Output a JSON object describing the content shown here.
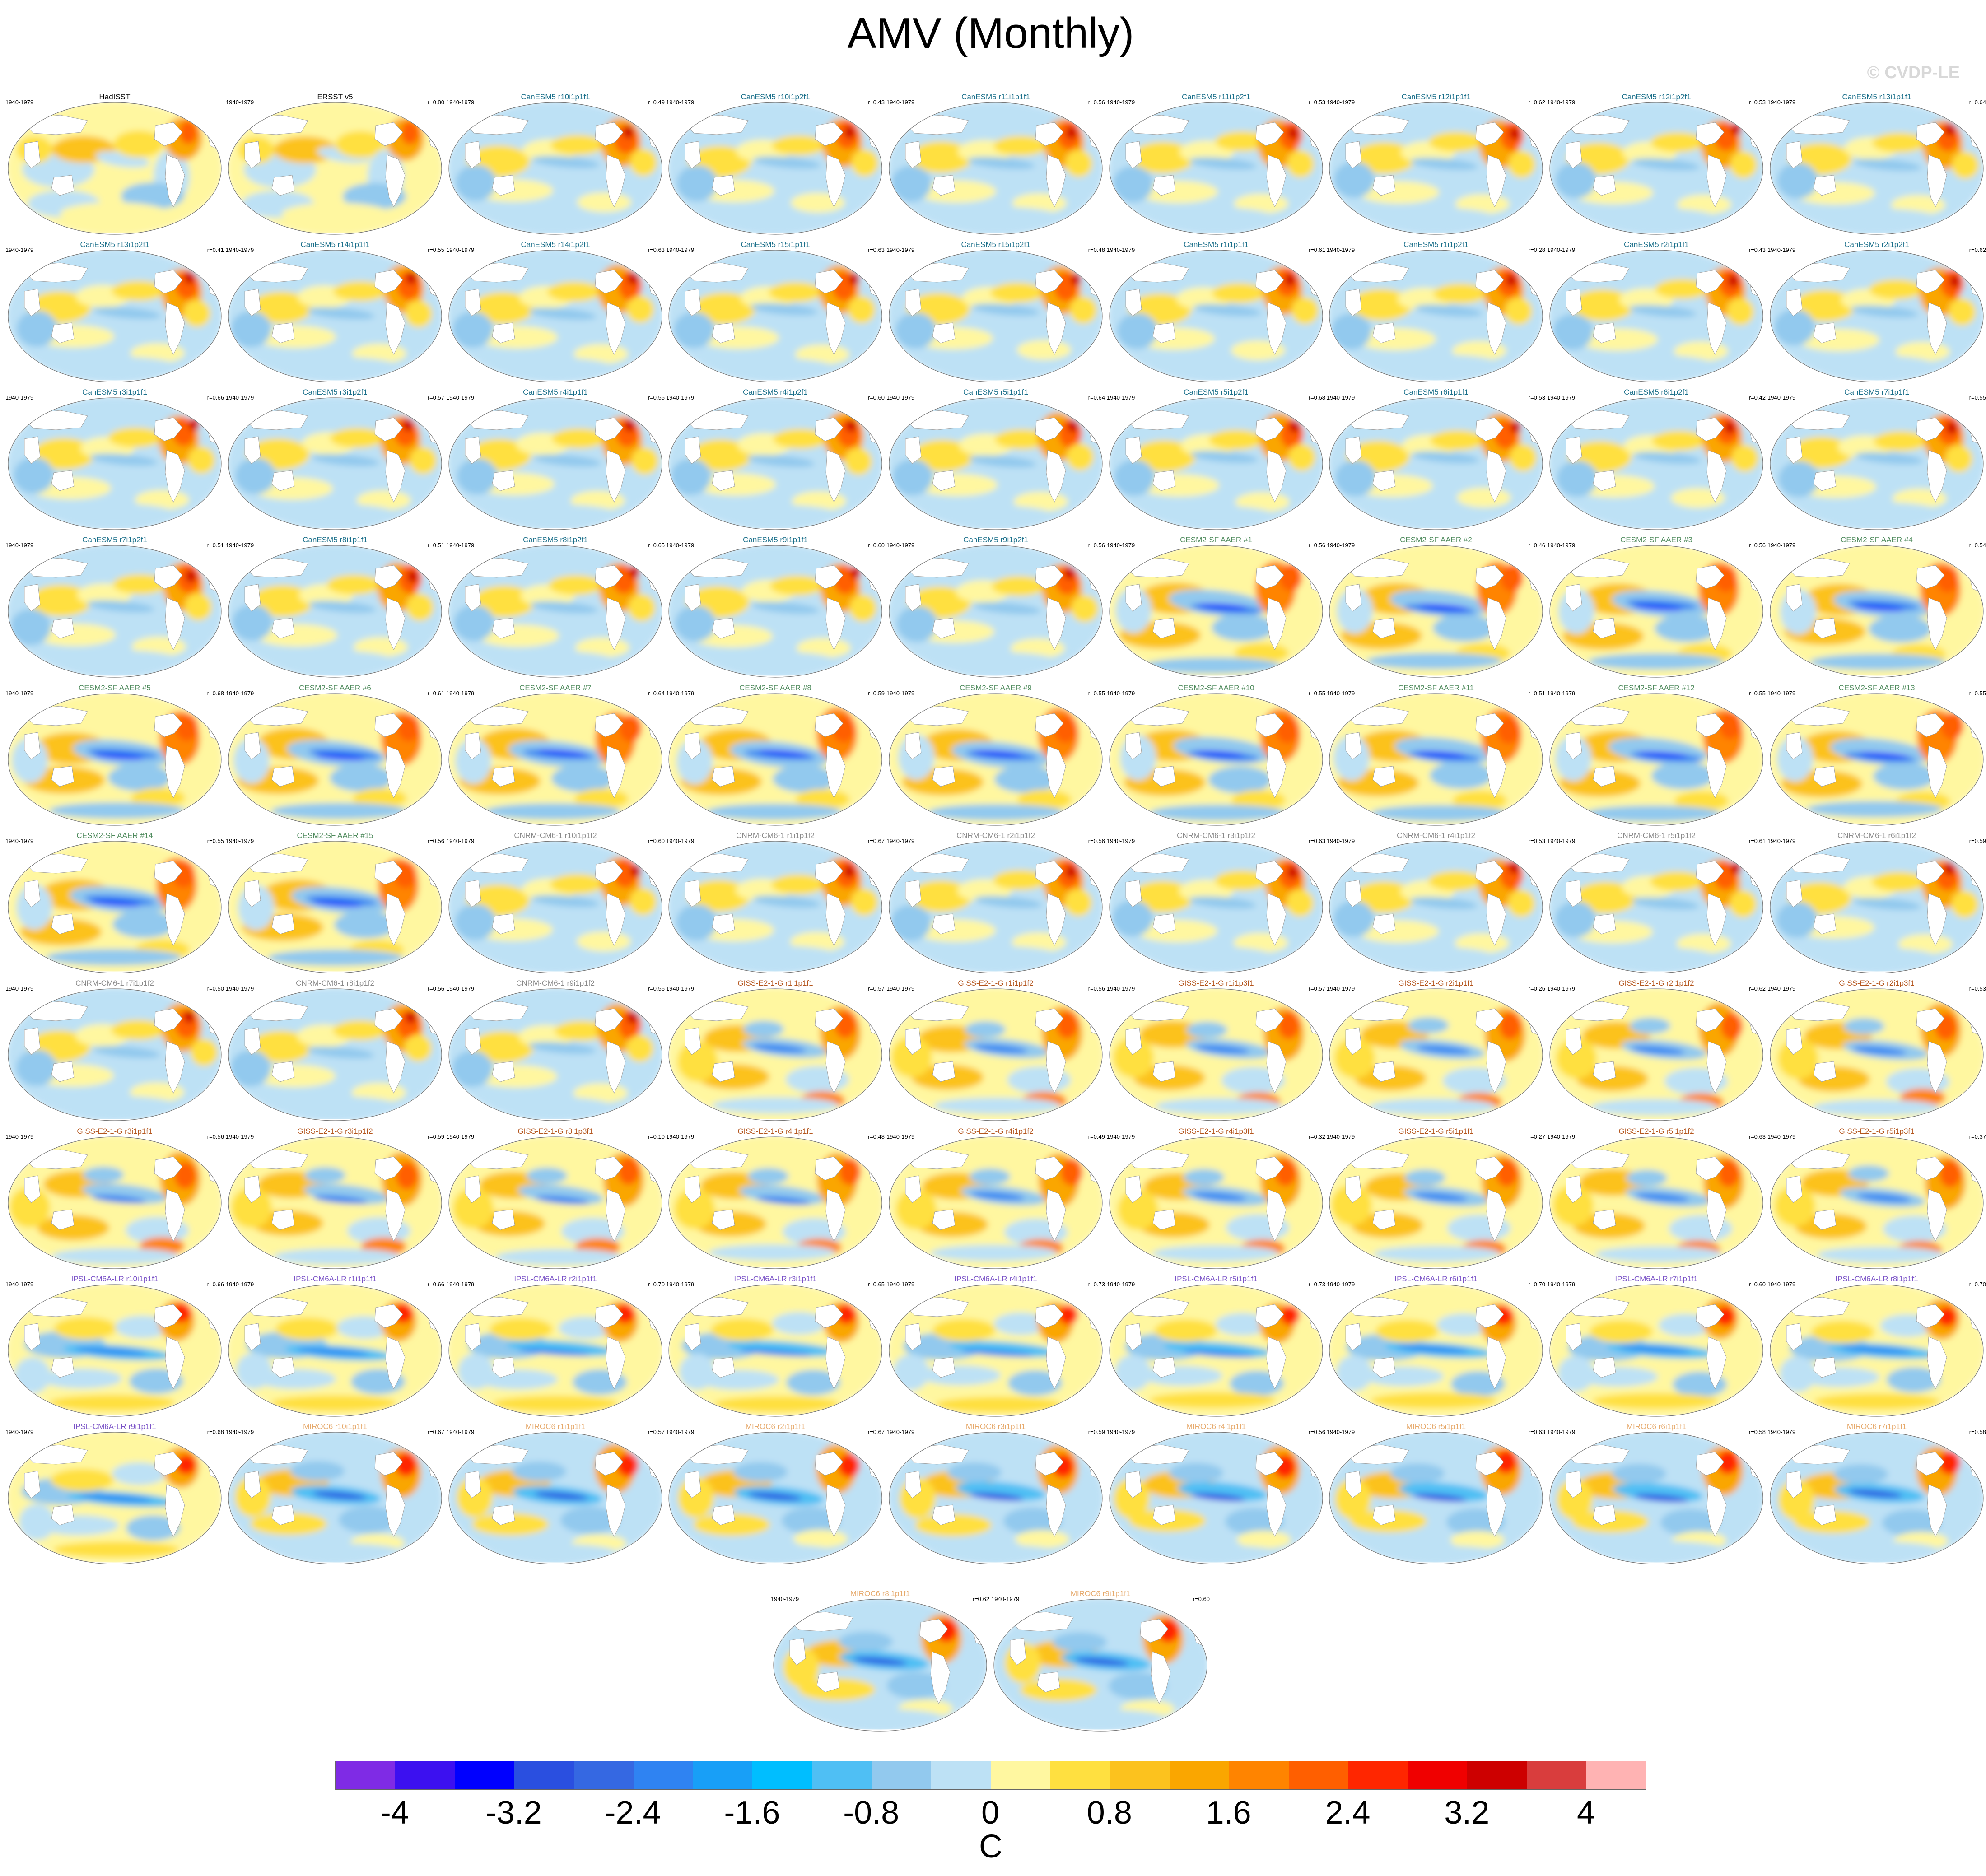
{
  "figure": {
    "title": "AMV (Monthly)",
    "watermark": "© CVDP-LE",
    "period": "1940-1979",
    "units": "C"
  },
  "colorbar": {
    "colors": [
      "#7f2be5",
      "#3c10f0",
      "#0000ff",
      "#2a4fe0",
      "#3568e2",
      "#2f83f2",
      "#189ff7",
      "#00beff",
      "#4fbff4",
      "#92c9ee",
      "#bde1f5",
      "#fff7a0",
      "#ffe040",
      "#fcc21e",
      "#faa600",
      "#ff8400",
      "#ff5f00",
      "#ff2600",
      "#f00000",
      "#cd0000",
      "#d93d3d",
      "#ffb3b3"
    ],
    "ticks": [
      "-4",
      "-3.2",
      "-2.4",
      "-1.6",
      "-0.8",
      "0",
      "0.8",
      "1.6",
      "2.4",
      "3.2",
      "4"
    ]
  },
  "group_colors": {
    "obs": "#000000",
    "canesm5": "#1a6f8a",
    "cesm2": "#4e8a5c",
    "cnrm": "#8a8a8a",
    "giss": "#b4561e",
    "ipsl": "#7a52c7",
    "miroc": "#e6a96b"
  },
  "panels": [
    {
      "name": "HadISST",
      "r": "",
      "group": "obs",
      "pattern": "obs"
    },
    {
      "name": "ERSST v5",
      "r": "r=0.80",
      "group": "obs",
      "pattern": "obs"
    },
    {
      "name": "CanESM5 r10i1p1f1",
      "r": "r=0.49",
      "group": "canesm5",
      "pattern": "can"
    },
    {
      "name": "CanESM5 r10i1p2f1",
      "r": "r=0.43",
      "group": "canesm5",
      "pattern": "can"
    },
    {
      "name": "CanESM5 r11i1p1f1",
      "r": "r=0.56",
      "group": "canesm5",
      "pattern": "can"
    },
    {
      "name": "CanESM5 r11i1p2f1",
      "r": "r=0.53",
      "group": "canesm5",
      "pattern": "can"
    },
    {
      "name": "CanESM5 r12i1p1f1",
      "r": "r=0.62",
      "group": "canesm5",
      "pattern": "can"
    },
    {
      "name": "CanESM5 r12i1p2f1",
      "r": "r=0.53",
      "group": "canesm5",
      "pattern": "can"
    },
    {
      "name": "CanESM5 r13i1p1f1",
      "r": "r=0.64",
      "group": "canesm5",
      "pattern": "can"
    },
    {
      "name": "CanESM5 r13i1p2f1",
      "r": "r=0.41",
      "group": "canesm5",
      "pattern": "can"
    },
    {
      "name": "CanESM5 r14i1p1f1",
      "r": "r=0.55",
      "group": "canesm5",
      "pattern": "can"
    },
    {
      "name": "CanESM5 r14i1p2f1",
      "r": "r=0.63",
      "group": "canesm5",
      "pattern": "can"
    },
    {
      "name": "CanESM5 r15i1p1f1",
      "r": "r=0.63",
      "group": "canesm5",
      "pattern": "can"
    },
    {
      "name": "CanESM5 r15i1p2f1",
      "r": "r=0.48",
      "group": "canesm5",
      "pattern": "can"
    },
    {
      "name": "CanESM5 r1i1p1f1",
      "r": "r=0.61",
      "group": "canesm5",
      "pattern": "can"
    },
    {
      "name": "CanESM5 r1i1p2f1",
      "r": "r=0.28",
      "group": "canesm5",
      "pattern": "can"
    },
    {
      "name": "CanESM5 r2i1p1f1",
      "r": "r=0.43",
      "group": "canesm5",
      "pattern": "can"
    },
    {
      "name": "CanESM5 r2i1p2f1",
      "r": "r=0.62",
      "group": "canesm5",
      "pattern": "can"
    },
    {
      "name": "CanESM5 r3i1p1f1",
      "r": "r=0.66",
      "group": "canesm5",
      "pattern": "can"
    },
    {
      "name": "CanESM5 r3i1p2f1",
      "r": "r=0.57",
      "group": "canesm5",
      "pattern": "can"
    },
    {
      "name": "CanESM5 r4i1p1f1",
      "r": "r=0.55",
      "group": "canesm5",
      "pattern": "can"
    },
    {
      "name": "CanESM5 r4i1p2f1",
      "r": "r=0.60",
      "group": "canesm5",
      "pattern": "can"
    },
    {
      "name": "CanESM5 r5i1p1f1",
      "r": "r=0.64",
      "group": "canesm5",
      "pattern": "can"
    },
    {
      "name": "CanESM5 r5i1p2f1",
      "r": "r=0.68",
      "group": "canesm5",
      "pattern": "can"
    },
    {
      "name": "CanESM5 r6i1p1f1",
      "r": "r=0.53",
      "group": "canesm5",
      "pattern": "can"
    },
    {
      "name": "CanESM5 r6i1p2f1",
      "r": "r=0.42",
      "group": "canesm5",
      "pattern": "can"
    },
    {
      "name": "CanESM5 r7i1p1f1",
      "r": "r=0.55",
      "group": "canesm5",
      "pattern": "can"
    },
    {
      "name": "CanESM5 r7i1p2f1",
      "r": "r=0.51",
      "group": "canesm5",
      "pattern": "can"
    },
    {
      "name": "CanESM5 r8i1p1f1",
      "r": "r=0.51",
      "group": "canesm5",
      "pattern": "can"
    },
    {
      "name": "CanESM5 r8i1p2f1",
      "r": "r=0.65",
      "group": "canesm5",
      "pattern": "can"
    },
    {
      "name": "CanESM5 r9i1p1f1",
      "r": "r=0.60",
      "group": "canesm5",
      "pattern": "can"
    },
    {
      "name": "CanESM5 r9i1p2f1",
      "r": "r=0.56",
      "group": "canesm5",
      "pattern": "can"
    },
    {
      "name": "CESM2-SF AAER #1",
      "r": "r=0.56",
      "group": "cesm2",
      "pattern": "cesm"
    },
    {
      "name": "CESM2-SF AAER #2",
      "r": "r=0.46",
      "group": "cesm2",
      "pattern": "cesm"
    },
    {
      "name": "CESM2-SF AAER #3",
      "r": "r=0.56",
      "group": "cesm2",
      "pattern": "cesm"
    },
    {
      "name": "CESM2-SF AAER #4",
      "r": "r=0.54",
      "group": "cesm2",
      "pattern": "cesm"
    },
    {
      "name": "CESM2-SF AAER #5",
      "r": "r=0.68",
      "group": "cesm2",
      "pattern": "cesm"
    },
    {
      "name": "CESM2-SF AAER #6",
      "r": "r=0.61",
      "group": "cesm2",
      "pattern": "cesm"
    },
    {
      "name": "CESM2-SF AAER #7",
      "r": "r=0.64",
      "group": "cesm2",
      "pattern": "cesm"
    },
    {
      "name": "CESM2-SF AAER #8",
      "r": "r=0.59",
      "group": "cesm2",
      "pattern": "cesm"
    },
    {
      "name": "CESM2-SF AAER #9",
      "r": "r=0.55",
      "group": "cesm2",
      "pattern": "cesm"
    },
    {
      "name": "CESM2-SF AAER #10",
      "r": "r=0.55",
      "group": "cesm2",
      "pattern": "cesm"
    },
    {
      "name": "CESM2-SF AAER #11",
      "r": "r=0.51",
      "group": "cesm2",
      "pattern": "cesm"
    },
    {
      "name": "CESM2-SF AAER #12",
      "r": "r=0.55",
      "group": "cesm2",
      "pattern": "cesm"
    },
    {
      "name": "CESM2-SF AAER #13",
      "r": "r=0.55",
      "group": "cesm2",
      "pattern": "cesm"
    },
    {
      "name": "CESM2-SF AAER #14",
      "r": "r=0.55",
      "group": "cesm2",
      "pattern": "cesm"
    },
    {
      "name": "CESM2-SF AAER #15",
      "r": "r=0.56",
      "group": "cesm2",
      "pattern": "cesm"
    },
    {
      "name": "CNRM-CM6-1 r10i1p1f2",
      "r": "r=0.60",
      "group": "cnrm",
      "pattern": "can"
    },
    {
      "name": "CNRM-CM6-1 r1i1p1f2",
      "r": "r=0.67",
      "group": "cnrm",
      "pattern": "can"
    },
    {
      "name": "CNRM-CM6-1 r2i1p1f2",
      "r": "r=0.56",
      "group": "cnrm",
      "pattern": "can"
    },
    {
      "name": "CNRM-CM6-1 r3i1p1f2",
      "r": "r=0.63",
      "group": "cnrm",
      "pattern": "can"
    },
    {
      "name": "CNRM-CM6-1 r4i1p1f2",
      "r": "r=0.53",
      "group": "cnrm",
      "pattern": "can"
    },
    {
      "name": "CNRM-CM6-1 r5i1p1f2",
      "r": "r=0.61",
      "group": "cnrm",
      "pattern": "can"
    },
    {
      "name": "CNRM-CM6-1 r6i1p1f2",
      "r": "r=0.59",
      "group": "cnrm",
      "pattern": "can"
    },
    {
      "name": "CNRM-CM6-1 r7i1p1f2",
      "r": "r=0.50",
      "group": "cnrm",
      "pattern": "can"
    },
    {
      "name": "CNRM-CM6-1 r8i1p1f2",
      "r": "r=0.56",
      "group": "cnrm",
      "pattern": "can"
    },
    {
      "name": "CNRM-CM6-1 r9i1p1f2",
      "r": "r=0.56",
      "group": "cnrm",
      "pattern": "can"
    },
    {
      "name": "GISS-E2-1-G r1i1p1f1",
      "r": "r=0.57",
      "group": "giss",
      "pattern": "giss"
    },
    {
      "name": "GISS-E2-1-G r1i1p1f2",
      "r": "r=0.56",
      "group": "giss",
      "pattern": "giss"
    },
    {
      "name": "GISS-E2-1-G r1i1p3f1",
      "r": "r=0.57",
      "group": "giss",
      "pattern": "giss"
    },
    {
      "name": "GISS-E2-1-G r2i1p1f1",
      "r": "r=0.26",
      "group": "giss",
      "pattern": "giss"
    },
    {
      "name": "GISS-E2-1-G r2i1p1f2",
      "r": "r=0.62",
      "group": "giss",
      "pattern": "giss"
    },
    {
      "name": "GISS-E2-1-G r2i1p3f1",
      "r": "r=0.53",
      "group": "giss",
      "pattern": "giss"
    },
    {
      "name": "GISS-E2-1-G r3i1p1f1",
      "r": "r=0.56",
      "group": "giss",
      "pattern": "giss"
    },
    {
      "name": "GISS-E2-1-G r3i1p1f2",
      "r": "r=0.59",
      "group": "giss",
      "pattern": "giss"
    },
    {
      "name": "GISS-E2-1-G r3i1p3f1",
      "r": "r=0.10",
      "group": "giss",
      "pattern": "giss"
    },
    {
      "name": "GISS-E2-1-G r4i1p1f1",
      "r": "r=0.48",
      "group": "giss",
      "pattern": "giss"
    },
    {
      "name": "GISS-E2-1-G r4i1p1f2",
      "r": "r=0.49",
      "group": "giss",
      "pattern": "giss"
    },
    {
      "name": "GISS-E2-1-G r4i1p3f1",
      "r": "r=0.32",
      "group": "giss",
      "pattern": "giss"
    },
    {
      "name": "GISS-E2-1-G r5i1p1f1",
      "r": "r=0.27",
      "group": "giss",
      "pattern": "giss"
    },
    {
      "name": "GISS-E2-1-G r5i1p1f2",
      "r": "r=0.63",
      "group": "giss",
      "pattern": "giss"
    },
    {
      "name": "GISS-E2-1-G r5i1p3f1",
      "r": "r=0.37",
      "group": "giss",
      "pattern": "giss"
    },
    {
      "name": "IPSL-CM6A-LR r10i1p1f1",
      "r": "r=0.66",
      "group": "ipsl",
      "pattern": "ipsl"
    },
    {
      "name": "IPSL-CM6A-LR r1i1p1f1",
      "r": "r=0.66",
      "group": "ipsl",
      "pattern": "ipsl"
    },
    {
      "name": "IPSL-CM6A-LR r2i1p1f1",
      "r": "r=0.70",
      "group": "ipsl",
      "pattern": "ipsl"
    },
    {
      "name": "IPSL-CM6A-LR r3i1p1f1",
      "r": "r=0.65",
      "group": "ipsl",
      "pattern": "ipsl"
    },
    {
      "name": "IPSL-CM6A-LR r4i1p1f1",
      "r": "r=0.73",
      "group": "ipsl",
      "pattern": "ipsl"
    },
    {
      "name": "IPSL-CM6A-LR r5i1p1f1",
      "r": "r=0.73",
      "group": "ipsl",
      "pattern": "ipsl"
    },
    {
      "name": "IPSL-CM6A-LR r6i1p1f1",
      "r": "r=0.70",
      "group": "ipsl",
      "pattern": "ipsl"
    },
    {
      "name": "IPSL-CM6A-LR r7i1p1f1",
      "r": "r=0.60",
      "group": "ipsl",
      "pattern": "ipsl"
    },
    {
      "name": "IPSL-CM6A-LR r8i1p1f1",
      "r": "r=0.70",
      "group": "ipsl",
      "pattern": "ipsl"
    },
    {
      "name": "IPSL-CM6A-LR r9i1p1f1",
      "r": "r=0.68",
      "group": "ipsl",
      "pattern": "ipsl"
    },
    {
      "name": "MIROC6 r10i1p1f1",
      "r": "r=0.67",
      "group": "miroc",
      "pattern": "miroc"
    },
    {
      "name": "MIROC6 r1i1p1f1",
      "r": "r=0.57",
      "group": "miroc",
      "pattern": "miroc"
    },
    {
      "name": "MIROC6 r2i1p1f1",
      "r": "r=0.67",
      "group": "miroc",
      "pattern": "miroc"
    },
    {
      "name": "MIROC6 r3i1p1f1",
      "r": "r=0.59",
      "group": "miroc",
      "pattern": "miroc"
    },
    {
      "name": "MIROC6 r4i1p1f1",
      "r": "r=0.56",
      "group": "miroc",
      "pattern": "miroc"
    },
    {
      "name": "MIROC6 r5i1p1f1",
      "r": "r=0.63",
      "group": "miroc",
      "pattern": "miroc"
    },
    {
      "name": "MIROC6 r6i1p1f1",
      "r": "r=0.58",
      "group": "miroc",
      "pattern": "miroc"
    },
    {
      "name": "MIROC6 r7i1p1f1",
      "r": "r=0.58",
      "group": "miroc",
      "pattern": "miroc"
    },
    {
      "name": "MIROC6 r8i1p1f1",
      "r": "r=0.62",
      "group": "miroc",
      "pattern": "miroc"
    },
    {
      "name": "MIROC6 r9i1p1f1",
      "r": "r=0.60",
      "group": "miroc",
      "pattern": "miroc"
    }
  ]
}
